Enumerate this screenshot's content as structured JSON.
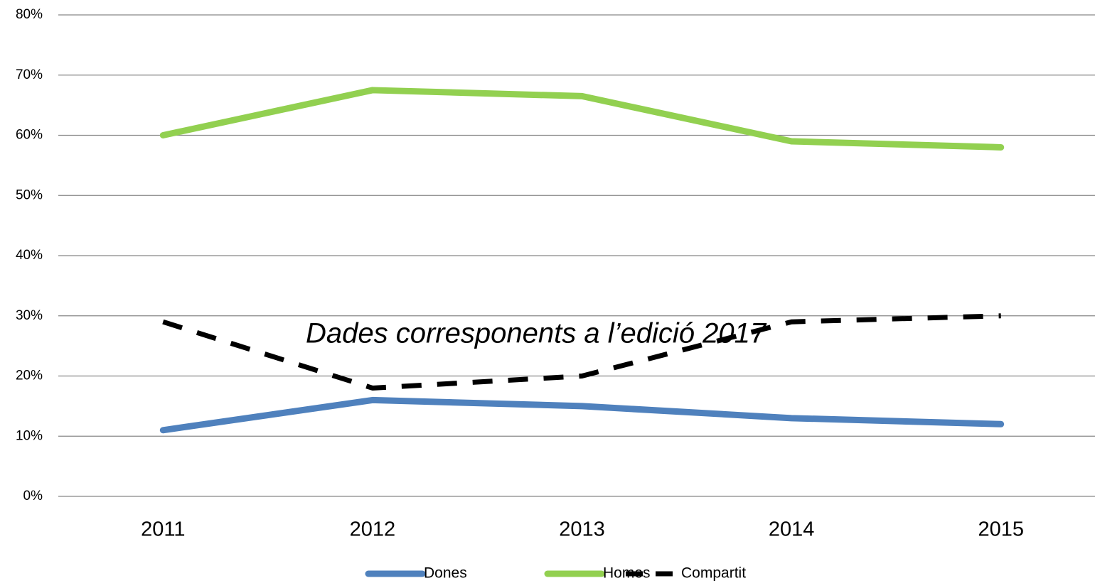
{
  "chart_data": {
    "type": "line",
    "categories": [
      "2011",
      "2012",
      "2013",
      "2014",
      "2015"
    ],
    "series": [
      {
        "name": "Dones",
        "color": "#4f81bd",
        "values": [
          11,
          16,
          15,
          13,
          12
        ]
      },
      {
        "name": "Homes",
        "color": "#92d050",
        "values": [
          60,
          67.5,
          66.5,
          59,
          58
        ]
      },
      {
        "name": "Compartit",
        "color": "#000000",
        "dashed": true,
        "values": [
          29,
          18,
          20,
          29,
          30
        ]
      }
    ],
    "ylim": [
      0,
      80
    ],
    "yticks": [
      {
        "value": 0,
        "label": "0%"
      },
      {
        "value": 10,
        "label": "10%"
      },
      {
        "value": 20,
        "label": "20%"
      },
      {
        "value": 30,
        "label": "30%"
      },
      {
        "value": 40,
        "label": "40%"
      },
      {
        "value": 50,
        "label": "50%"
      },
      {
        "value": 60,
        "label": "60%"
      },
      {
        "value": 70,
        "label": "70%"
      },
      {
        "value": 80,
        "label": "80%"
      }
    ],
    "grid": true,
    "legend": "bottom",
    "annotation": "Dades corresponents a l’edició 2017"
  }
}
